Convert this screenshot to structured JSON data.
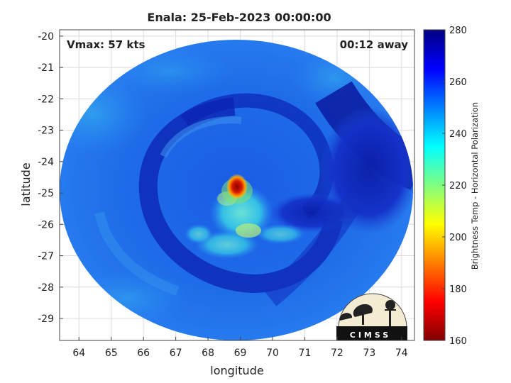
{
  "chart_data": {
    "type": "heatmap",
    "title": "Enala: 25-Feb-2023 00:00:00",
    "xlabel": "longitude",
    "ylabel": "latitude",
    "xlim": [
      63.4,
      74.4
    ],
    "ylim": [
      -29.7,
      -19.8
    ],
    "xticks": [
      64,
      65,
      66,
      67,
      68,
      69,
      70,
      71,
      72,
      73,
      74
    ],
    "yticks": [
      -20,
      -21,
      -22,
      -23,
      -24,
      -25,
      -26,
      -27,
      -28,
      -29
    ],
    "grid": true,
    "annotations": {
      "vmax": "Vmax: 57 kts",
      "time_offset": "00:12 away"
    },
    "colorbar": {
      "label": "Brightness Temp - Horizontal Polarization",
      "range": [
        160,
        280
      ],
      "ticks": [
        160,
        180,
        200,
        220,
        240,
        260,
        280
      ],
      "colormap": "jet"
    },
    "features": [
      {
        "name": "eye",
        "lon": 68.9,
        "lat": -24.8,
        "value": 165
      },
      {
        "name": "inner-core",
        "lon": 69.2,
        "lat": -25.9,
        "value": 240
      }
    ]
  },
  "logo": {
    "text": "CIMSS"
  }
}
